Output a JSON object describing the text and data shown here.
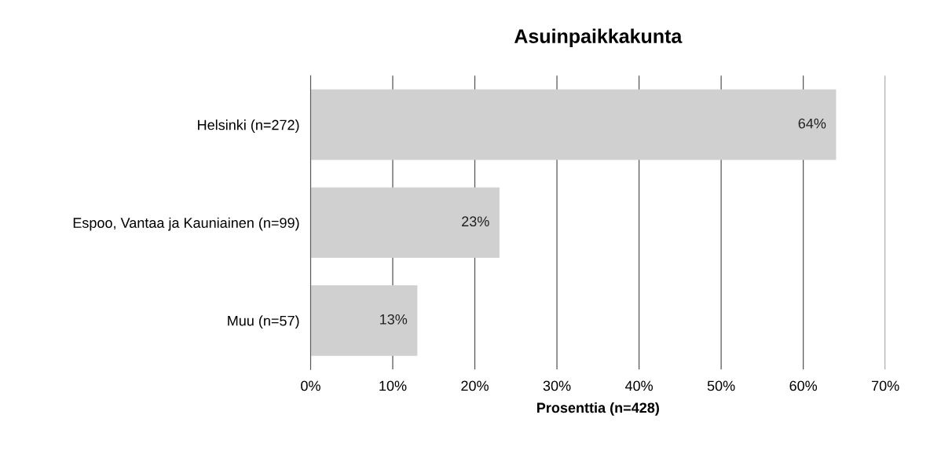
{
  "chart_data": {
    "type": "bar",
    "orientation": "horizontal",
    "title": "Asuinpaikkakunta",
    "xlabel": "Prosenttia (n=428)",
    "categories": [
      "Helsinki (n=272)",
      "Espoo, Vantaa ja Kauniainen (n=99)",
      "Muu (n=57)"
    ],
    "values": [
      64,
      23,
      13
    ],
    "value_labels": [
      "64%",
      "23%",
      "13%"
    ],
    "color": "#d0d0d0",
    "xlim": [
      0,
      70
    ],
    "xticks": [
      {
        "value": 0,
        "label": "0%"
      },
      {
        "value": 10,
        "label": "10%"
      },
      {
        "value": 20,
        "label": "20%"
      },
      {
        "value": 30,
        "label": "30%"
      },
      {
        "value": 40,
        "label": "40%"
      },
      {
        "value": 50,
        "label": "50%"
      },
      {
        "value": 60,
        "label": "60%"
      },
      {
        "value": 70,
        "label": "70%"
      }
    ],
    "grid": "x",
    "legend": false
  }
}
